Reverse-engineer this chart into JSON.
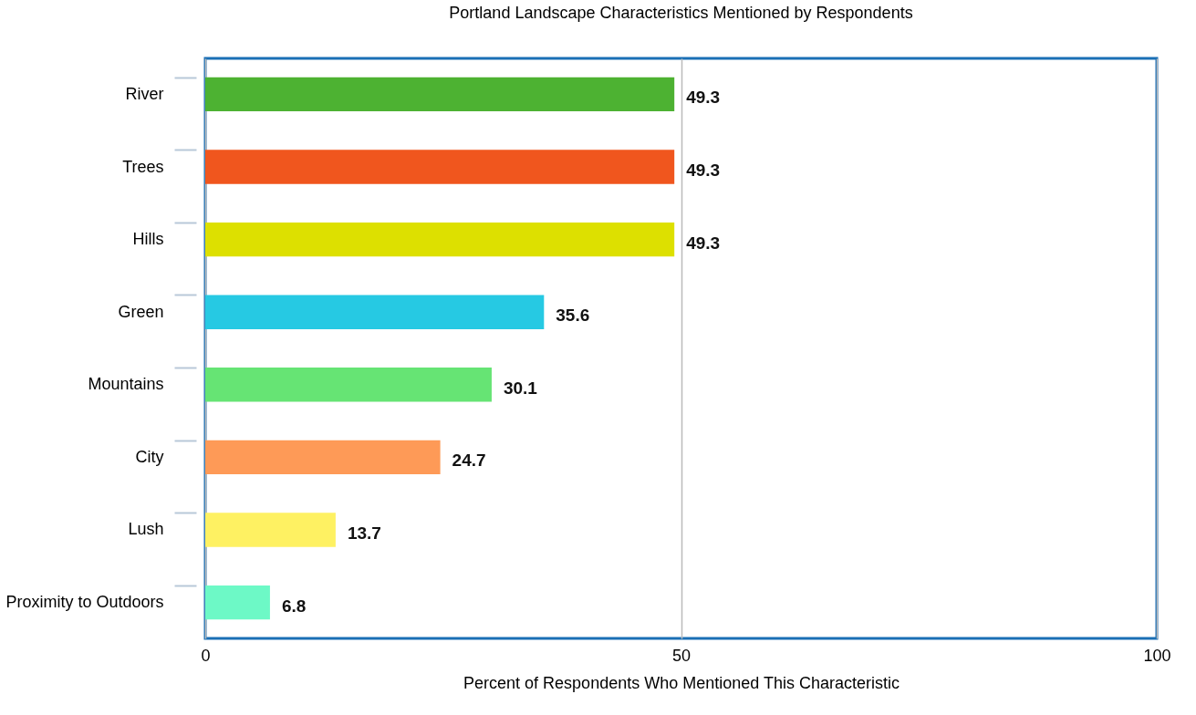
{
  "chart_data": {
    "type": "bar",
    "orientation": "horizontal",
    "title": "Portland Landscape Characteristics Mentioned by Respondents",
    "xlabel": "Percent of Respondents Who Mentioned This Characteristic",
    "categories": [
      "River",
      "Trees",
      "Hills",
      "Green",
      "Mountains",
      "City",
      "Lush",
      "Proximity to Outdoors"
    ],
    "values": [
      49.3,
      49.3,
      49.3,
      35.6,
      30.1,
      24.7,
      13.7,
      6.8
    ],
    "colors": [
      "#4db232",
      "#f0561e",
      "#dde000",
      "#26c9e3",
      "#66e474",
      "#fe9a57",
      "#fef162",
      "#6df9c6"
    ],
    "xlim": [
      0,
      100
    ],
    "xticks": [
      0,
      50,
      100
    ],
    "grid": "x",
    "data_labels": true
  }
}
